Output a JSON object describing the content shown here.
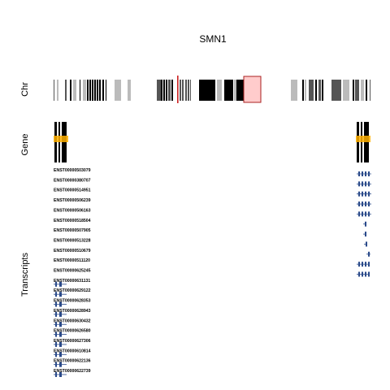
{
  "title": "SMN1",
  "tracks": {
    "chr": "Chr",
    "gene": "Gene",
    "transcripts": "Transcripts"
  },
  "colors": {
    "band_dark": "#000000",
    "band_mid": "#555555",
    "band_light": "#bbbbbb",
    "centromere": "#cc2222",
    "highlight_fill": "#ffcccc",
    "highlight_stroke": "#aa2222",
    "gene_fill": "#000000",
    "gene_accent": "#ffb000",
    "transcript": "#2a4a8a"
  },
  "transcripts": [
    "ENST00000503079",
    "ENST00000380707",
    "ENST00000514951",
    "ENST00000506239",
    "ENST00000506163",
    "ENST00000518504",
    "ENST00000507905",
    "ENST00000513228",
    "ENST00000510679",
    "ENST00000511120",
    "ENST00000625245",
    "ENST00000631131",
    "ENST00000629122",
    "ENST00000628353",
    "ENST00000628943",
    "ENST00000630432",
    "ENST00000626580",
    "ENST00000627306",
    "ENST00000610814",
    "ENST00000622136",
    "ENST00000622739"
  ]
}
